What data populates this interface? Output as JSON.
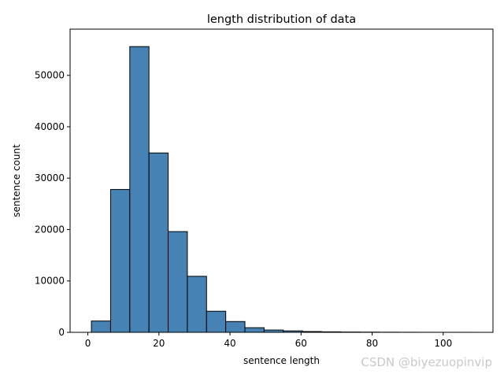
{
  "chart_data": {
    "type": "bar",
    "title": "length distribution of data",
    "xlabel": "sentence length",
    "ylabel": "sentence count",
    "bin_edges": [
      1,
      6.4,
      11.8,
      17.2,
      22.6,
      28,
      33.4,
      38.8,
      44.2,
      49.6,
      55,
      60.4,
      65.8,
      71.2,
      76.6,
      82,
      87.4,
      92.8,
      98.2,
      103.6,
      109
    ],
    "values": [
      2200,
      27800,
      55600,
      34900,
      19600,
      10900,
      4100,
      2100,
      900,
      450,
      280,
      150,
      100,
      60,
      40,
      25,
      15,
      10,
      6,
      4
    ],
    "xlim": [
      -5,
      114
    ],
    "ylim": [
      0,
      59000
    ],
    "xticks": [
      0,
      20,
      40,
      60,
      80,
      100
    ],
    "yticks": [
      0,
      10000,
      20000,
      30000,
      40000,
      50000
    ],
    "bar_color": "#4682b4",
    "edge_color": "#000000",
    "grid": false,
    "legend": "none"
  },
  "watermark": "CSDN @biyezuopinvip"
}
